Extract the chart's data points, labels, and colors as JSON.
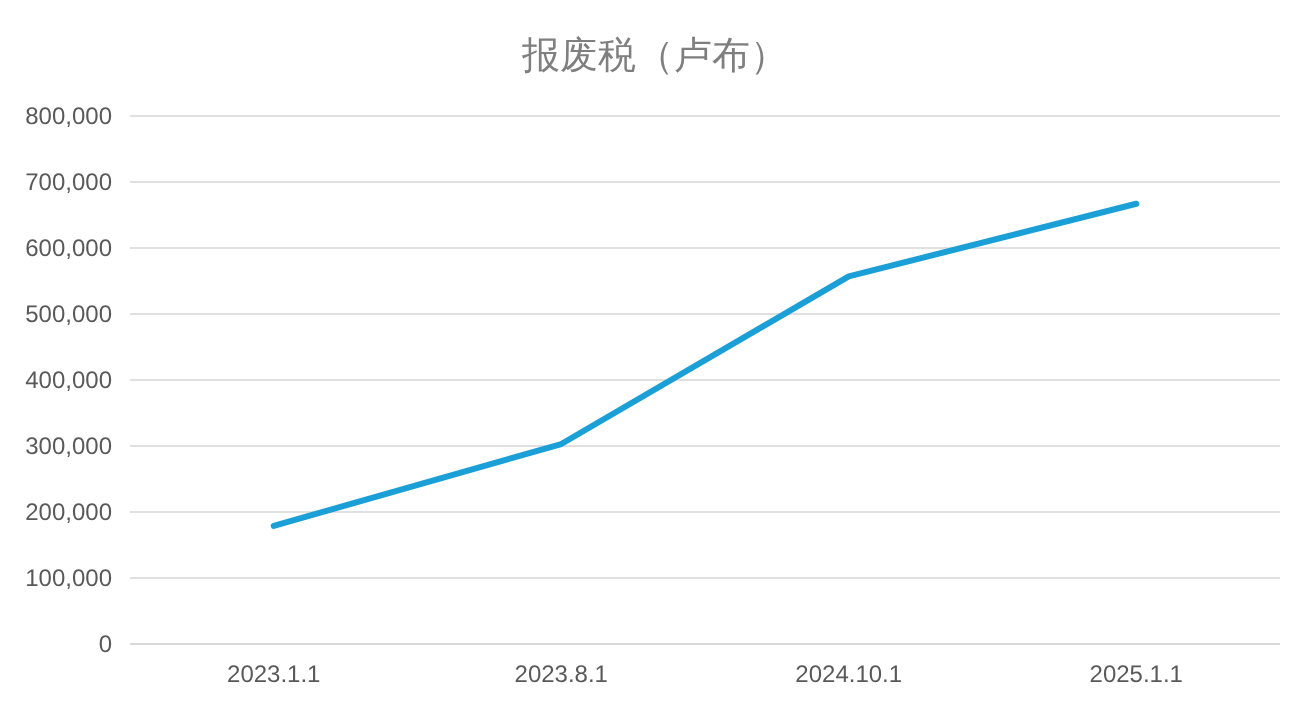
{
  "chart_data": {
    "type": "line",
    "title": "报废税（卢布）",
    "categories": [
      "2023.1.1",
      "2023.8.1",
      "2024.10.1",
      "2025.1.1"
    ],
    "series": [
      {
        "color": "#1a9fd6",
        "values": [
          179000,
          303000,
          557000,
          667000
        ]
      }
    ],
    "ylim": [
      0,
      800000
    ],
    "yticks": [
      {
        "value": 0,
        "label": "0"
      },
      {
        "value": 100000,
        "label": "100,000"
      },
      {
        "value": 200000,
        "label": "200,000"
      },
      {
        "value": 300000,
        "label": "300,000"
      },
      {
        "value": 400000,
        "label": "400,000"
      },
      {
        "value": 500000,
        "label": "500,000"
      },
      {
        "value": 600000,
        "label": "600,000"
      },
      {
        "value": 700000,
        "label": "700,000"
      },
      {
        "value": 800000,
        "label": "800,000"
      }
    ],
    "grid": "y",
    "marker": "none",
    "line_style": "solid"
  }
}
